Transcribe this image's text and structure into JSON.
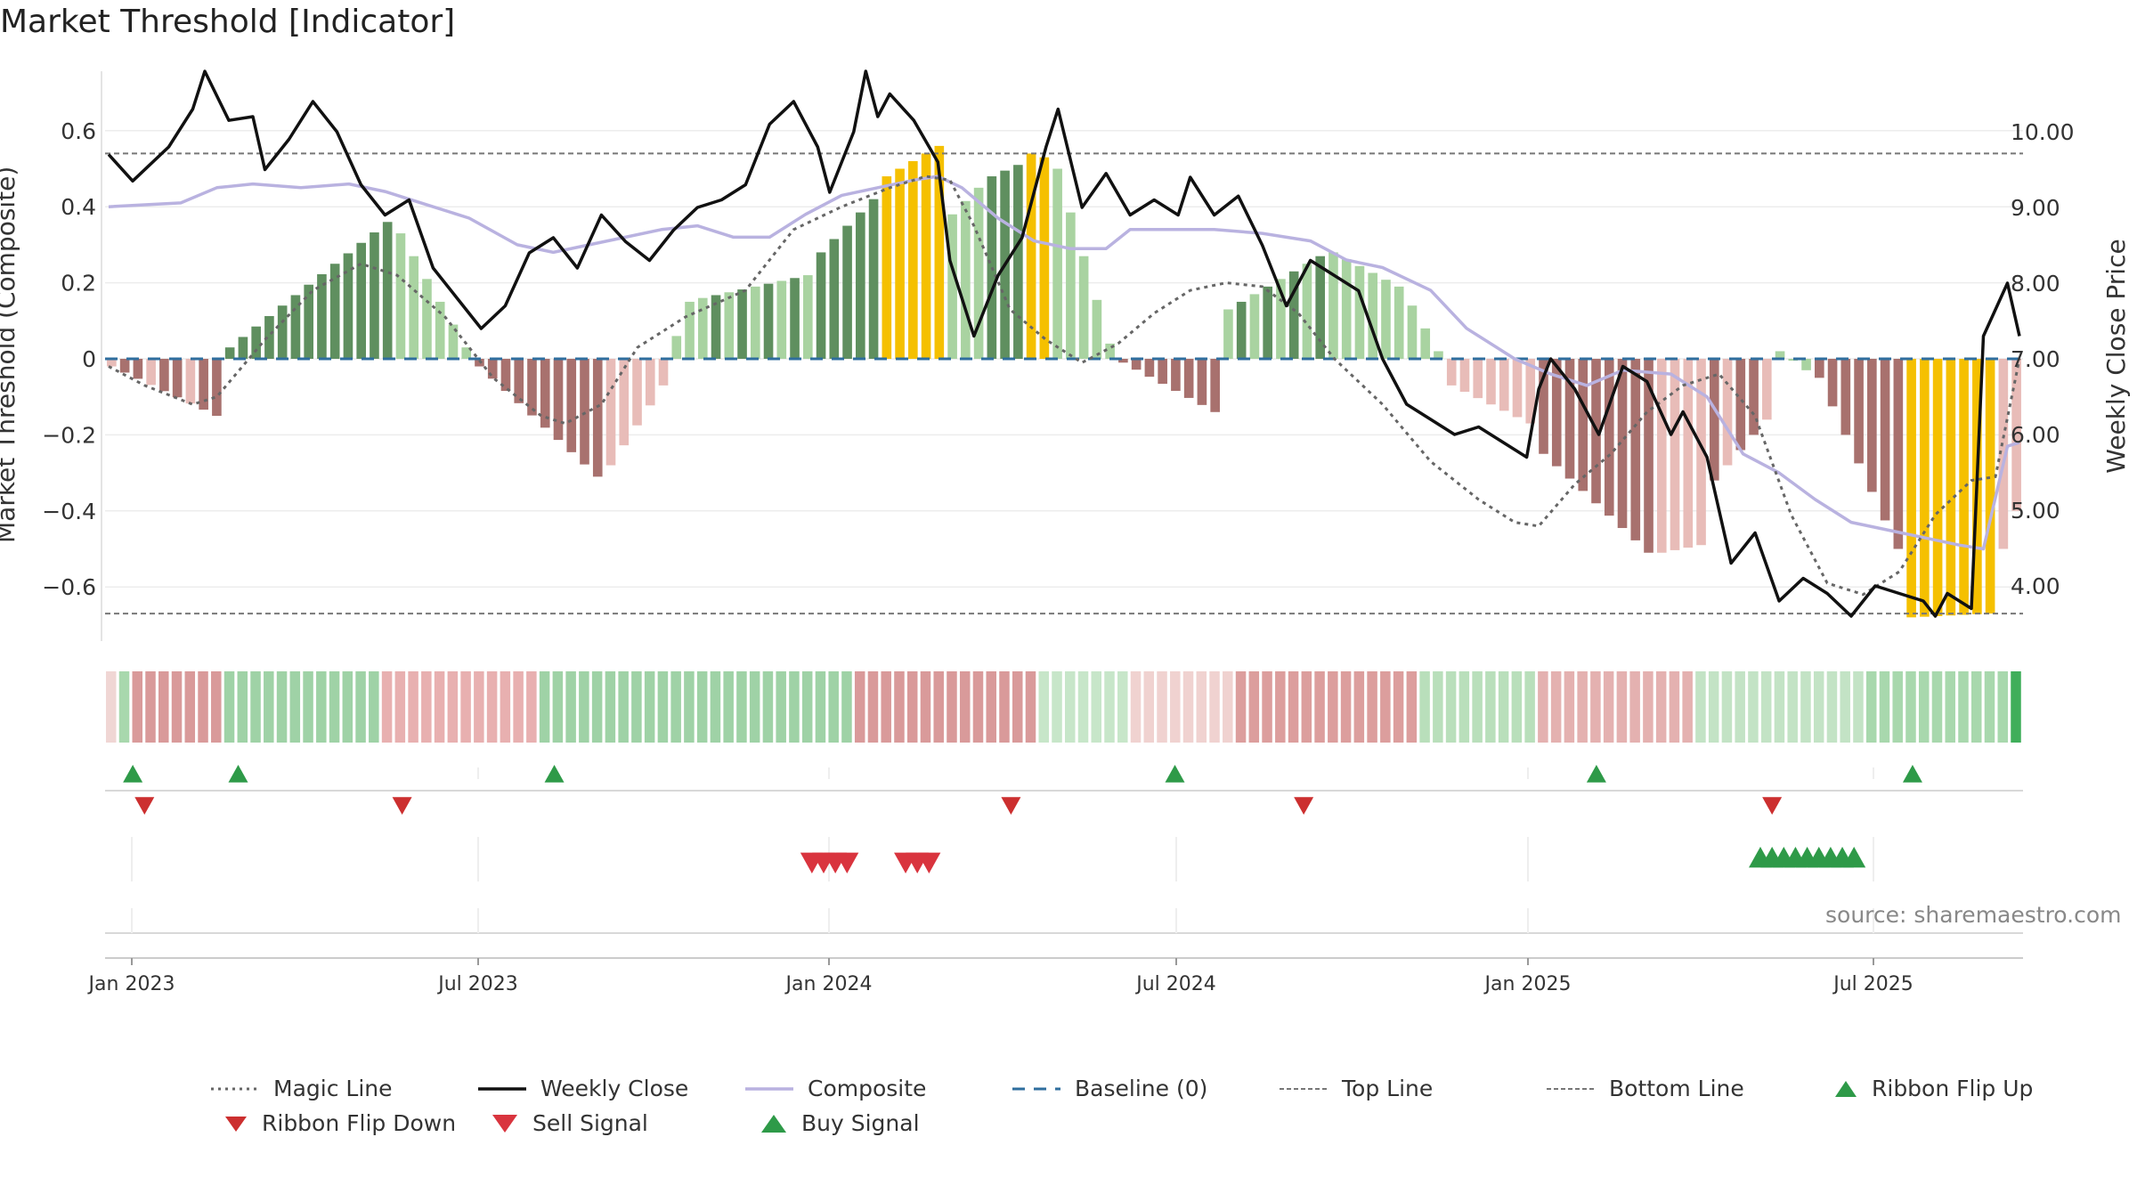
{
  "title": "Market Threshold [Indicator]",
  "source_text": "source: sharemaestro.com",
  "colors": {
    "dark_green": "#5f8f5f",
    "light_green": "#a9d3a1",
    "dark_red": "#a8716e",
    "light_red": "#e8bcb8",
    "gold": "#f5c000",
    "weekly_close": "#111111",
    "composite": "#b9b2e0",
    "magic": "#666666",
    "baseline": "#2f6e9e",
    "buy": "#2e9a48",
    "sell": "#d9343e"
  },
  "chart_data": {
    "type": "bar+line",
    "title": "Market Threshold [Indicator]",
    "ylabel_left": "Market Threshold (Composite)",
    "ylabel_right": "Weekly Close Price",
    "ylim_left": [
      -0.75,
      0.75
    ],
    "ylim_right": [
      3.0,
      10.5
    ],
    "left_ticks": [
      "0.6",
      "0.4",
      "0.2",
      "0",
      "−0.2",
      "−0.4",
      "−0.6"
    ],
    "right_ticks": [
      "10.00",
      "9.00",
      "8.00",
      "7.00",
      "6.00",
      "5.00",
      "4.00"
    ],
    "x_ticks": [
      "Jan 2023",
      "Jul 2023",
      "Jan 2024",
      "Jul 2024",
      "Jan 2025",
      "Jul 2025"
    ],
    "top_line": 0.54,
    "bottom_line": -0.67,
    "baseline": 0,
    "weeks": 146,
    "histogram_segments": [
      {
        "from": 0,
        "to": 8,
        "start": -0.02,
        "end": -0.15,
        "color": "mixed_red"
      },
      {
        "from": 9,
        "to": 21,
        "start": 0.03,
        "end": 0.36,
        "color": "dark_green"
      },
      {
        "from": 22,
        "to": 27,
        "start": 0.33,
        "end": 0.03,
        "color": "light_green"
      },
      {
        "from": 28,
        "to": 37,
        "start": -0.02,
        "end": -0.31,
        "color": "dark_red"
      },
      {
        "from": 38,
        "to": 42,
        "start": -0.28,
        "end": -0.07,
        "color": "light_red"
      },
      {
        "from": 43,
        "to": 44,
        "start": 0.06,
        "end": 0.15,
        "color": "light_green"
      },
      {
        "from": 45,
        "to": 53,
        "start": 0.16,
        "end": 0.22,
        "color": "mixed_green"
      },
      {
        "from": 54,
        "to": 58,
        "start": 0.28,
        "end": 0.42,
        "color": "dark_green"
      },
      {
        "from": 59,
        "to": 63,
        "start": 0.48,
        "end": 0.56,
        "color": "gold"
      },
      {
        "from": 64,
        "to": 66,
        "start": 0.38,
        "end": 0.45,
        "color": "light_green"
      },
      {
        "from": 67,
        "to": 69,
        "start": 0.48,
        "end": 0.51,
        "color": "dark_green"
      },
      {
        "from": 70,
        "to": 71,
        "start": 0.54,
        "end": 0.53,
        "color": "gold"
      },
      {
        "from": 72,
        "to": 76,
        "start": 0.5,
        "end": 0.04,
        "color": "light_green"
      },
      {
        "from": 77,
        "to": 84,
        "start": -0.01,
        "end": -0.14,
        "color": "dark_red"
      },
      {
        "from": 85,
        "to": 92,
        "start": 0.13,
        "end": 0.27,
        "color": "mixed_green"
      },
      {
        "from": 93,
        "to": 98,
        "start": 0.28,
        "end": 0.19,
        "color": "light_green"
      },
      {
        "from": 99,
        "to": 101,
        "start": 0.14,
        "end": 0.02,
        "color": "light_green"
      },
      {
        "from": 102,
        "to": 108,
        "start": -0.07,
        "end": -0.17,
        "color": "light_red"
      },
      {
        "from": 109,
        "to": 117,
        "start": -0.25,
        "end": -0.51,
        "color": "dark_red"
      },
      {
        "from": 118,
        "to": 121,
        "start": -0.51,
        "end": -0.49,
        "color": "light_red"
      },
      {
        "from": 122,
        "to": 126,
        "start": -0.32,
        "end": -0.16,
        "color": "mixed_red"
      },
      {
        "from": 127,
        "to": 129,
        "start": 0.02,
        "end": -0.03,
        "color": "light_green"
      },
      {
        "from": 130,
        "to": 136,
        "start": -0.05,
        "end": -0.5,
        "color": "dark_red"
      },
      {
        "from": 137,
        "to": 143,
        "start": -0.68,
        "end": -0.67,
        "color": "gold"
      },
      {
        "from": 144,
        "to": 145,
        "start": -0.5,
        "end": -0.4,
        "color": "light_red"
      }
    ],
    "weekly_close_keypoints": [
      [
        0,
        9.7
      ],
      [
        2,
        9.35
      ],
      [
        5,
        9.8
      ],
      [
        7,
        10.3
      ],
      [
        8,
        10.8
      ],
      [
        10,
        10.15
      ],
      [
        12,
        10.2
      ],
      [
        13,
        9.5
      ],
      [
        15,
        9.9
      ],
      [
        17,
        10.4
      ],
      [
        19,
        10.0
      ],
      [
        21,
        9.3
      ],
      [
        23,
        8.9
      ],
      [
        25,
        9.1
      ],
      [
        27,
        8.2
      ],
      [
        29,
        7.8
      ],
      [
        31,
        7.4
      ],
      [
        33,
        7.7
      ],
      [
        35,
        8.4
      ],
      [
        37,
        8.6
      ],
      [
        39,
        8.2
      ],
      [
        41,
        8.9
      ],
      [
        43,
        8.55
      ],
      [
        45,
        8.3
      ],
      [
        47,
        8.7
      ],
      [
        49,
        9.0
      ],
      [
        51,
        9.1
      ],
      [
        53,
        9.3
      ],
      [
        55,
        10.1
      ],
      [
        57,
        10.4
      ],
      [
        59,
        9.8
      ],
      [
        60,
        9.2
      ],
      [
        62,
        10.0
      ],
      [
        63,
        10.8
      ],
      [
        64,
        10.2
      ],
      [
        65,
        10.5
      ],
      [
        67,
        10.15
      ],
      [
        69,
        9.6
      ],
      [
        70,
        8.3
      ],
      [
        72,
        7.3
      ],
      [
        74,
        8.1
      ],
      [
        76,
        8.6
      ],
      [
        78,
        9.8
      ],
      [
        79,
        10.3
      ],
      [
        81,
        9.0
      ],
      [
        83,
        9.45
      ],
      [
        85,
        8.9
      ],
      [
        87,
        9.1
      ],
      [
        89,
        8.9
      ],
      [
        90,
        9.4
      ],
      [
        92,
        8.9
      ],
      [
        94,
        9.15
      ],
      [
        96,
        8.5
      ],
      [
        98,
        7.7
      ],
      [
        100,
        8.3
      ],
      [
        102,
        8.1
      ],
      [
        104,
        7.9
      ],
      [
        106,
        7.0
      ],
      [
        108,
        6.4
      ],
      [
        110,
        6.2
      ],
      [
        112,
        6.0
      ],
      [
        114,
        6.1
      ],
      [
        116,
        5.9
      ],
      [
        118,
        5.7
      ],
      [
        119,
        6.6
      ],
      [
        120,
        7.0
      ],
      [
        122,
        6.6
      ],
      [
        124,
        6.0
      ],
      [
        126,
        6.9
      ],
      [
        128,
        6.7
      ],
      [
        130,
        6.0
      ],
      [
        131,
        6.3
      ],
      [
        133,
        5.7
      ],
      [
        135,
        4.3
      ],
      [
        137,
        4.7
      ],
      [
        139,
        3.8
      ],
      [
        141,
        4.1
      ],
      [
        143,
        3.9
      ],
      [
        145,
        3.6
      ],
      [
        147,
        4.0
      ],
      [
        149,
        3.9
      ],
      [
        151,
        3.8
      ],
      [
        152,
        3.6
      ],
      [
        153,
        3.9
      ],
      [
        155,
        3.7
      ],
      [
        156,
        7.3
      ],
      [
        158,
        8.0
      ],
      [
        159,
        7.3
      ]
    ],
    "composite_keypoints": [
      [
        0,
        0.4
      ],
      [
        6,
        0.41
      ],
      [
        9,
        0.45
      ],
      [
        12,
        0.46
      ],
      [
        16,
        0.45
      ],
      [
        20,
        0.46
      ],
      [
        23,
        0.44
      ],
      [
        26,
        0.41
      ],
      [
        30,
        0.37
      ],
      [
        34,
        0.3
      ],
      [
        37,
        0.28
      ],
      [
        40,
        0.3
      ],
      [
        43,
        0.32
      ],
      [
        46,
        0.34
      ],
      [
        49,
        0.35
      ],
      [
        52,
        0.32
      ],
      [
        55,
        0.32
      ],
      [
        58,
        0.38
      ],
      [
        61,
        0.43
      ],
      [
        64,
        0.45
      ],
      [
        67,
        0.47
      ],
      [
        69,
        0.48
      ],
      [
        71,
        0.45
      ],
      [
        74,
        0.37
      ],
      [
        77,
        0.31
      ],
      [
        80,
        0.29
      ],
      [
        83,
        0.29
      ],
      [
        85,
        0.34
      ],
      [
        88,
        0.34
      ],
      [
        92,
        0.34
      ],
      [
        96,
        0.33
      ],
      [
        100,
        0.31
      ],
      [
        103,
        0.26
      ],
      [
        106,
        0.24
      ],
      [
        110,
        0.18
      ],
      [
        113,
        0.08
      ],
      [
        117,
        0.0
      ],
      [
        120,
        -0.04
      ],
      [
        123,
        -0.07
      ],
      [
        126,
        -0.03
      ],
      [
        130,
        -0.04
      ],
      [
        133,
        -0.1
      ],
      [
        136,
        -0.25
      ],
      [
        139,
        -0.3
      ],
      [
        142,
        -0.37
      ],
      [
        145,
        -0.43
      ],
      [
        148,
        -0.45
      ],
      [
        151,
        -0.47
      ],
      [
        154,
        -0.49
      ],
      [
        156,
        -0.5
      ],
      [
        158,
        -0.23
      ],
      [
        159,
        -0.22
      ]
    ],
    "magic_keypoints": [
      [
        0,
        -0.02
      ],
      [
        3,
        -0.07
      ],
      [
        7,
        -0.12
      ],
      [
        9,
        -0.1
      ],
      [
        13,
        0.05
      ],
      [
        17,
        0.18
      ],
      [
        21,
        0.25
      ],
      [
        24,
        0.22
      ],
      [
        28,
        0.11
      ],
      [
        32,
        -0.05
      ],
      [
        36,
        -0.15
      ],
      [
        38,
        -0.17
      ],
      [
        41,
        -0.12
      ],
      [
        44,
        0.03
      ],
      [
        48,
        0.11
      ],
      [
        53,
        0.18
      ],
      [
        57,
        0.34
      ],
      [
        61,
        0.4
      ],
      [
        65,
        0.45
      ],
      [
        68,
        0.48
      ],
      [
        70,
        0.47
      ],
      [
        72,
        0.35
      ],
      [
        75,
        0.13
      ],
      [
        78,
        0.05
      ],
      [
        81,
        -0.01
      ],
      [
        84,
        0.04
      ],
      [
        87,
        0.12
      ],
      [
        90,
        0.18
      ],
      [
        93,
        0.2
      ],
      [
        96,
        0.19
      ],
      [
        99,
        0.12
      ],
      [
        102,
        0.0
      ],
      [
        106,
        -0.12
      ],
      [
        110,
        -0.27
      ],
      [
        114,
        -0.37
      ],
      [
        117,
        -0.43
      ],
      [
        119,
        -0.44
      ],
      [
        122,
        -0.33
      ],
      [
        125,
        -0.25
      ],
      [
        128,
        -0.14
      ],
      [
        131,
        -0.07
      ],
      [
        134,
        -0.04
      ],
      [
        137,
        -0.15
      ],
      [
        140,
        -0.41
      ],
      [
        143,
        -0.59
      ],
      [
        146,
        -0.62
      ],
      [
        149,
        -0.56
      ],
      [
        152,
        -0.41
      ],
      [
        155,
        -0.32
      ],
      [
        157,
        -0.31
      ],
      [
        159,
        0.0
      ]
    ],
    "ribbon": {
      "weeks": 146,
      "blocks": [
        {
          "from": 0,
          "to": 0,
          "color": "#f0d6d4"
        },
        {
          "from": 1,
          "to": 1,
          "color": "#a8d8ad"
        },
        {
          "from": 2,
          "to": 8,
          "color": "#d99a9a"
        },
        {
          "from": 9,
          "to": 20,
          "color": "#9fd2a6"
        },
        {
          "from": 21,
          "to": 32,
          "color": "#e8b0b0"
        },
        {
          "from": 33,
          "to": 56,
          "color": "#9fd2a6"
        },
        {
          "from": 57,
          "to": 70,
          "color": "#d99a9a"
        },
        {
          "from": 71,
          "to": 77,
          "color": "#c7e6c9"
        },
        {
          "from": 78,
          "to": 85,
          "color": "#f0d2d0"
        },
        {
          "from": 86,
          "to": 99,
          "color": "#dc9e9d"
        },
        {
          "from": 100,
          "to": 108,
          "color": "#b9dfbb"
        },
        {
          "from": 109,
          "to": 120,
          "color": "#e4b1b0"
        },
        {
          "from": 121,
          "to": 133,
          "color": "#c3e3c5"
        },
        {
          "from": 134,
          "to": 144,
          "color": "#a8d8ad"
        },
        {
          "from": 145,
          "to": 145,
          "color": "#3fae5a"
        }
      ]
    },
    "ribbon_flip_up": [
      1,
      10,
      37,
      90,
      126,
      153
    ],
    "ribbon_flip_down": [
      2,
      24,
      76,
      101,
      141
    ],
    "sell_signals": [
      59,
      60,
      61,
      62,
      67,
      68,
      69
    ],
    "buy_signals": [
      140,
      141,
      142,
      143,
      144,
      145,
      146,
      147,
      148
    ]
  },
  "legend": {
    "magic_line": "Magic Line",
    "weekly_close": "Weekly Close",
    "composite": "Composite",
    "baseline": "Baseline (0)",
    "top_line": "Top Line",
    "bottom_line": "Bottom Line",
    "ribbon_flip_up": "Ribbon Flip Up",
    "ribbon_flip_down": "Ribbon Flip Down",
    "sell_signal": "Sell Signal",
    "buy_signal": "Buy Signal"
  }
}
